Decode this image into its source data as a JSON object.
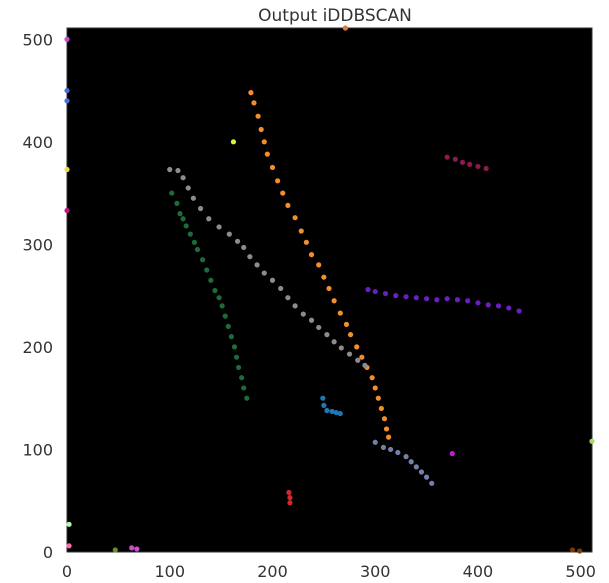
{
  "chart_data": {
    "type": "scatter",
    "title": "Output iDDBSCAN",
    "xlabel": "",
    "ylabel": "",
    "xlim": [
      0,
      511
    ],
    "ylim": [
      0,
      511
    ],
    "x_ticks": [
      0,
      100,
      200,
      300,
      400,
      500
    ],
    "y_ticks": [
      0,
      100,
      200,
      300,
      400,
      500
    ],
    "x_tick_labels": [
      "0",
      "100",
      "200",
      "300",
      "400",
      "500"
    ],
    "y_tick_labels": [
      "0",
      "100",
      "200",
      "300",
      "400",
      "500"
    ],
    "background": "#000000",
    "grid": false,
    "legend": "none",
    "series": [
      {
        "color": "#f28e2b",
        "points": [
          [
            179,
            448
          ],
          [
            182,
            438
          ],
          [
            186,
            425
          ],
          [
            189,
            412
          ],
          [
            192,
            400
          ],
          [
            195,
            388
          ],
          [
            200,
            375
          ],
          [
            205,
            362
          ],
          [
            210,
            350
          ],
          [
            215,
            338
          ],
          [
            222,
            326
          ],
          [
            228,
            313
          ],
          [
            233,
            302
          ],
          [
            238,
            290
          ],
          [
            245,
            280
          ],
          [
            250,
            268
          ],
          [
            255,
            257
          ],
          [
            260,
            245
          ],
          [
            266,
            233
          ],
          [
            272,
            222
          ],
          [
            276,
            212
          ],
          [
            282,
            200
          ],
          [
            287,
            190
          ],
          [
            292,
            180
          ],
          [
            297,
            170
          ],
          [
            300,
            160
          ],
          [
            303,
            150
          ],
          [
            306,
            140
          ],
          [
            309,
            130
          ],
          [
            311,
            120
          ],
          [
            313,
            112
          ]
        ]
      },
      {
        "color": "#8c8c8c",
        "points": [
          [
            100,
            373
          ],
          [
            108,
            372
          ],
          [
            113,
            365
          ],
          [
            118,
            355
          ],
          [
            123,
            345
          ],
          [
            130,
            335
          ],
          [
            138,
            325
          ],
          [
            148,
            317
          ],
          [
            158,
            310
          ],
          [
            166,
            303
          ],
          [
            172,
            297
          ],
          [
            178,
            288
          ],
          [
            185,
            280
          ],
          [
            192,
            272
          ],
          [
            200,
            265
          ],
          [
            208,
            257
          ],
          [
            215,
            248
          ],
          [
            222,
            240
          ],
          [
            230,
            232
          ],
          [
            238,
            226
          ],
          [
            245,
            219
          ],
          [
            253,
            212
          ],
          [
            260,
            205
          ],
          [
            267,
            199
          ],
          [
            275,
            193
          ],
          [
            283,
            187
          ],
          [
            290,
            182
          ]
        ]
      },
      {
        "color": "#1e6b3a",
        "points": [
          [
            102,
            350
          ],
          [
            107,
            340
          ],
          [
            110,
            330
          ],
          [
            113,
            325
          ],
          [
            116,
            318
          ],
          [
            120,
            310
          ],
          [
            124,
            302
          ],
          [
            127,
            295
          ],
          [
            132,
            285
          ],
          [
            136,
            275
          ],
          [
            140,
            265
          ],
          [
            144,
            255
          ],
          [
            148,
            248
          ],
          [
            151,
            240
          ],
          [
            154,
            230
          ],
          [
            157,
            220
          ],
          [
            160,
            210
          ],
          [
            163,
            200
          ],
          [
            165,
            190
          ],
          [
            167,
            180
          ],
          [
            170,
            170
          ],
          [
            172,
            160
          ],
          [
            175,
            150
          ]
        ]
      },
      {
        "color": "#6a1fbf",
        "points": [
          [
            293,
            256
          ],
          [
            300,
            254
          ],
          [
            310,
            252
          ],
          [
            320,
            250
          ],
          [
            330,
            249
          ],
          [
            340,
            248
          ],
          [
            350,
            247
          ],
          [
            360,
            246
          ],
          [
            370,
            247
          ],
          [
            380,
            246
          ],
          [
            390,
            245
          ],
          [
            400,
            243
          ],
          [
            410,
            241
          ],
          [
            420,
            240
          ],
          [
            430,
            238
          ],
          [
            440,
            235
          ]
        ]
      },
      {
        "color": "#7480a8",
        "points": [
          [
            300,
            107
          ],
          [
            308,
            102
          ],
          [
            315,
            100
          ],
          [
            322,
            97
          ],
          [
            330,
            93
          ],
          [
            335,
            88
          ],
          [
            340,
            83
          ],
          [
            345,
            78
          ],
          [
            350,
            73
          ],
          [
            355,
            67
          ]
        ]
      },
      {
        "color": "#1f77b4",
        "points": [
          [
            249,
            150
          ],
          [
            250,
            143
          ],
          [
            253,
            138
          ],
          [
            258,
            137
          ],
          [
            262,
            136
          ],
          [
            266,
            135
          ]
        ]
      },
      {
        "color": "#8b1a4e",
        "points": [
          [
            370,
            385
          ],
          [
            378,
            383
          ],
          [
            385,
            380
          ],
          [
            392,
            378
          ],
          [
            400,
            376
          ],
          [
            408,
            374
          ]
        ]
      },
      {
        "color": "#d62728",
        "points": [
          [
            216,
            58
          ],
          [
            217,
            53
          ],
          [
            217,
            48
          ]
        ]
      },
      {
        "color": "#d9f23c",
        "points": [
          [
            162,
            400
          ]
        ]
      },
      {
        "color": "#c51bd6",
        "points": [
          [
            375,
            96
          ]
        ]
      },
      {
        "color": "#a6d96a",
        "points": [
          [
            511,
            108
          ]
        ]
      },
      {
        "color": "#4a6fdd",
        "points": [
          [
            0,
            450
          ],
          [
            0,
            440
          ]
        ]
      },
      {
        "color": "#cc4dcc",
        "points": [
          [
            0,
            500
          ],
          [
            63,
            4
          ],
          [
            68,
            3
          ]
        ]
      },
      {
        "color": "#c71585",
        "points": [
          [
            0,
            333
          ]
        ]
      },
      {
        "color": "#e8e04a",
        "points": [
          [
            0,
            373
          ]
        ]
      },
      {
        "color": "#b8f5b8",
        "points": [
          [
            2,
            27
          ]
        ]
      },
      {
        "color": "#7a3b00",
        "points": [
          [
            492,
            2
          ],
          [
            499,
            1
          ]
        ]
      },
      {
        "color": "#6b8e23",
        "points": [
          [
            47,
            2
          ]
        ]
      },
      {
        "color": "#ff69b4",
        "points": [
          [
            2,
            6
          ]
        ]
      },
      {
        "color": "#e07b39",
        "points": [
          [
            271,
            511
          ]
        ]
      }
    ]
  }
}
